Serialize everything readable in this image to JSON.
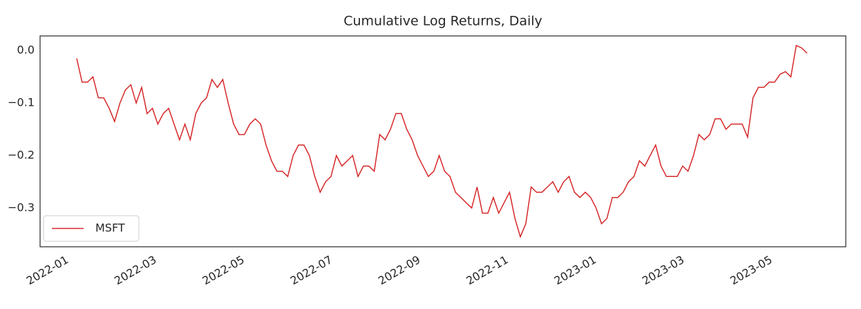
{
  "chart_data": {
    "type": "line",
    "title": "Cumulative Log Returns, Daily",
    "xticks": [
      "2022-01",
      "2022-03",
      "2022-05",
      "2022-07",
      "2022-09",
      "2022-11",
      "2023-01",
      "2023-03",
      "2023-05"
    ],
    "ylim": [
      -0.374,
      0.028
    ],
    "yticks": [
      {
        "value": 0,
        "label": "0.0"
      },
      {
        "value": -0.1,
        "label": "−0.1"
      },
      {
        "value": -0.2,
        "label": "−0.2"
      },
      {
        "value": -0.3,
        "label": "−0.3"
      }
    ],
    "grid": false,
    "legend": "lower left",
    "series": [
      {
        "name": "MSFT",
        "color": "#d62728",
        "values": [
          -0.015,
          -0.06,
          -0.06,
          -0.05,
          -0.09,
          -0.09,
          -0.11,
          -0.135,
          -0.1,
          -0.075,
          -0.065,
          -0.1,
          -0.07,
          -0.12,
          -0.11,
          -0.14,
          -0.12,
          -0.11,
          -0.14,
          -0.17,
          -0.14,
          -0.17,
          -0.12,
          -0.1,
          -0.09,
          -0.055,
          -0.07,
          -0.055,
          -0.1,
          -0.14,
          -0.16,
          -0.16,
          -0.14,
          -0.13,
          -0.14,
          -0.18,
          -0.21,
          -0.23,
          -0.23,
          -0.24,
          -0.2,
          -0.18,
          -0.18,
          -0.2,
          -0.24,
          -0.27,
          -0.25,
          -0.24,
          -0.2,
          -0.22,
          -0.21,
          -0.2,
          -0.24,
          -0.22,
          -0.22,
          -0.23,
          -0.16,
          -0.17,
          -0.15,
          -0.12,
          -0.12,
          -0.15,
          -0.17,
          -0.2,
          -0.22,
          -0.24,
          -0.23,
          -0.2,
          -0.23,
          -0.24,
          -0.27,
          -0.28,
          -0.29,
          -0.3,
          -0.26,
          -0.31,
          -0.31,
          -0.28,
          -0.31,
          -0.29,
          -0.27,
          -0.32,
          -0.355,
          -0.33,
          -0.26,
          -0.27,
          -0.27,
          -0.26,
          -0.25,
          -0.27,
          -0.25,
          -0.24,
          -0.27,
          -0.28,
          -0.27,
          -0.28,
          -0.3,
          -0.33,
          -0.32,
          -0.28,
          -0.28,
          -0.27,
          -0.25,
          -0.24,
          -0.21,
          -0.22,
          -0.2,
          -0.18,
          -0.22,
          -0.24,
          -0.24,
          -0.24,
          -0.22,
          -0.23,
          -0.2,
          -0.16,
          -0.17,
          -0.16,
          -0.13,
          -0.13,
          -0.15,
          -0.14,
          -0.14,
          -0.14,
          -0.165,
          -0.09,
          -0.07,
          -0.07,
          -0.06,
          -0.06,
          -0.045,
          -0.04,
          -0.05,
          0.01,
          0.005,
          -0.005
        ]
      }
    ]
  }
}
